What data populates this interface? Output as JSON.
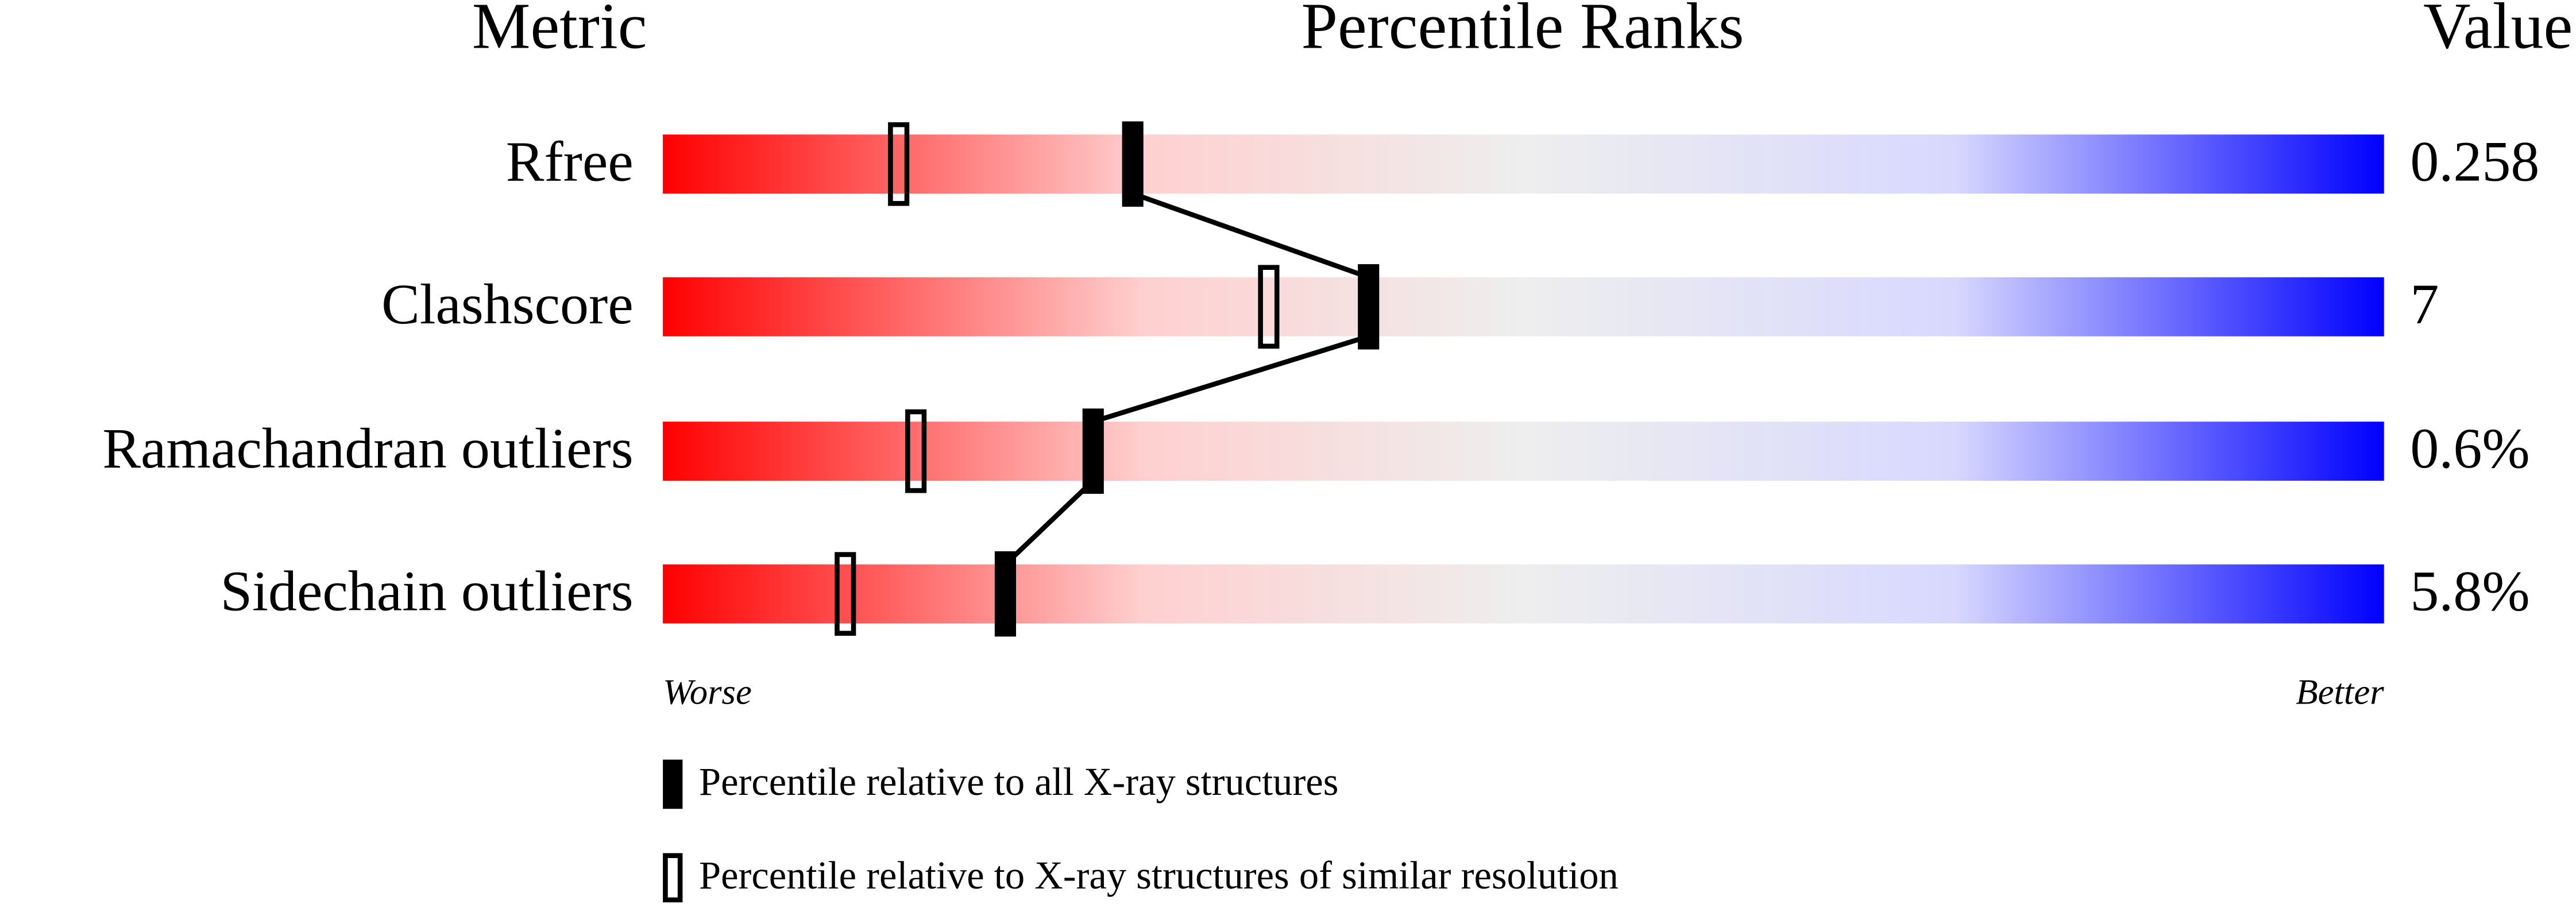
{
  "chart_data": {
    "type": "percentile-slider",
    "headers": {
      "metric": "Metric",
      "ranks": "Percentile Ranks",
      "value": "Value"
    },
    "categories": [
      "Rfree",
      "Clashscore",
      "Ramachandran outliers",
      "Sidechain outliers"
    ],
    "value_column": [
      "0.258",
      "7",
      "0.6%",
      "5.8%"
    ],
    "xlim": [
      0,
      100
    ],
    "x_end_labels": {
      "low": "Worse",
      "high": "Better"
    },
    "gradient": [
      "#ff0000",
      "#ffd0d0",
      "#eeeeee",
      "#d8d8ff",
      "#0000ff"
    ],
    "series": [
      {
        "name": "Percentile relative to all X-ray structures",
        "color": "#000000",
        "filled": true,
        "connected": true,
        "values": [
          27.3,
          41.0,
          25.0,
          19.9
        ]
      },
      {
        "name": "Percentile relative to X-ray structures of similar resolution",
        "color": "#000000",
        "filled": false,
        "connected": false,
        "values": [
          13.7,
          35.2,
          14.7,
          10.6
        ]
      }
    ]
  }
}
